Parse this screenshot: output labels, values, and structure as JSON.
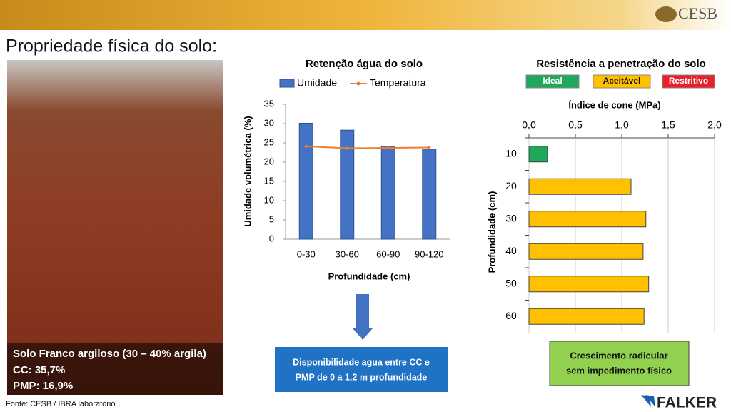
{
  "header": {
    "logo": "CESB",
    "title": "Propriedade física do solo:"
  },
  "photo": {
    "caption": [
      "Solo Franco argiloso (30 – 40% argila)",
      "CC: 35,7%",
      "PMP: 16,9%"
    ]
  },
  "source": "Fonte: CESB / IBRA laboratório",
  "note_blue": [
    "Disponibilidade agua entre CC e",
    "PMP de 0 a 1,2 m profundidade"
  ],
  "note_green": [
    "Crescimento radicular",
    "sem impedimento físico"
  ],
  "footer_logo": "FALKER",
  "chart_data": [
    {
      "type": "bar",
      "title": "Retenção água do solo",
      "x_label": "Profundidade (cm)",
      "y_label": "Umidade volumétrica (%)",
      "categories": [
        "0-30",
        "30-60",
        "60-90",
        "90-120"
      ],
      "series": [
        {
          "name": "Umidade",
          "type": "bar",
          "color": "#4472c4",
          "values": [
            30.1,
            28.3,
            24.1,
            23.4
          ]
        },
        {
          "name": "Temperatura",
          "type": "line",
          "color": "#ed7d31",
          "values": [
            24.1,
            23.6,
            23.7,
            23.8
          ]
        }
      ],
      "ylim": [
        0,
        35
      ],
      "yticks": [
        0,
        5,
        10,
        15,
        20,
        25,
        30,
        35
      ],
      "legend": "top"
    },
    {
      "type": "hbar",
      "title": "Resistência a penetração do solo",
      "x_label": "Índice de cone (MPa)",
      "y_label": "Profundidade (cm)",
      "legend": [
        {
          "name": "Ideal",
          "color": "#1fa85a"
        },
        {
          "name": "Aceitável",
          "color": "#ffc000"
        },
        {
          "name": "Restritivo",
          "color": "#e8202a"
        }
      ],
      "categories": [
        "10",
        "20",
        "30",
        "40",
        "50",
        "60"
      ],
      "values": [
        0.2,
        1.1,
        1.26,
        1.23,
        1.29,
        1.24
      ],
      "colors": [
        "#1fa85a",
        "#ffc000",
        "#ffc000",
        "#ffc000",
        "#ffc000",
        "#ffc000"
      ],
      "xlim": [
        0,
        2
      ],
      "xticks": [
        {
          "value": 0,
          "label": "0,0"
        },
        {
          "value": 0.5,
          "label": "0,5"
        },
        {
          "value": 1,
          "label": "1,0"
        },
        {
          "value": 1.5,
          "label": "1,5"
        },
        {
          "value": 2,
          "label": "2,0"
        }
      ],
      "grid": true
    }
  ]
}
